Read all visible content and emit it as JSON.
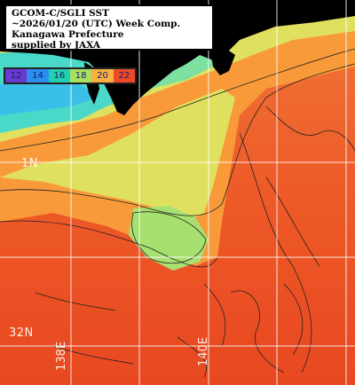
{
  "title": {
    "line1": "GCOM-C/SGLI SST",
    "line2": "~2026/01/20 (UTC) Week Comp.",
    "line3": "Kanagawa Prefecture",
    "line4": "supplied by JAXA"
  },
  "legend": {
    "items": [
      {
        "label": "12",
        "color": "#6a3ad0"
      },
      {
        "label": "14",
        "color": "#2a8ff0"
      },
      {
        "label": "16",
        "color": "#22d0b0"
      },
      {
        "label": "18",
        "color": "#a8e060"
      },
      {
        "label": "20",
        "color": "#f8b040"
      },
      {
        "label": "22",
        "color": "#ee4a28"
      }
    ]
  },
  "grid": {
    "lat_labels": [
      "1N",
      "32N"
    ],
    "lon_labels": [
      "138E",
      "140E"
    ]
  },
  "colors": {
    "land": "#000000",
    "ocean_warm": "#ee5a28",
    "ocean_mid": "#f89a3a",
    "ocean_cool": "#d8e060",
    "ocean_cold": "#4ad8c8",
    "grid": "#ffffff"
  }
}
